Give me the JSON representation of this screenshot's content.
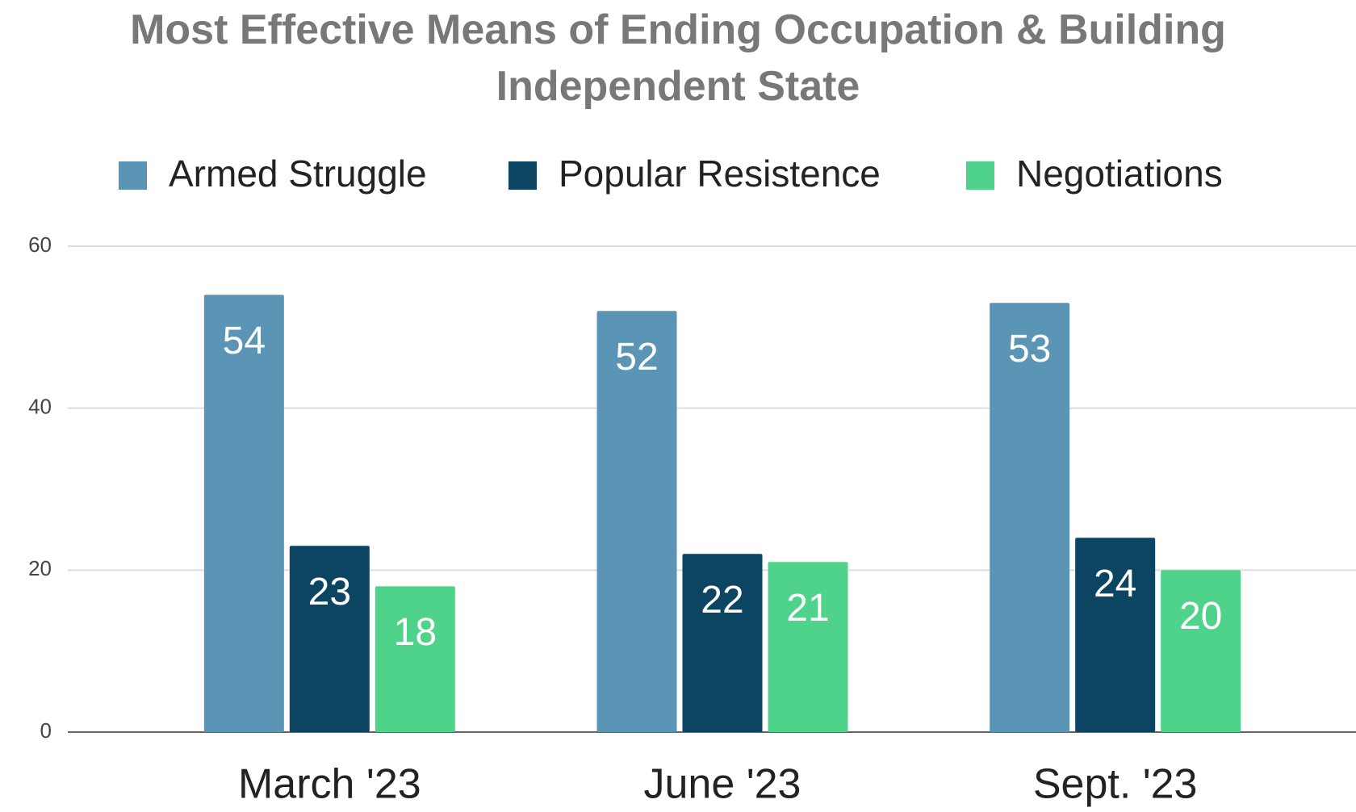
{
  "chart_data": {
    "type": "bar",
    "title": "Most Effective Means of Ending Occupation & Building Independent State",
    "categories": [
      "March '23",
      "June '23",
      "Sept. '23"
    ],
    "series": [
      {
        "name": "Armed Struggle",
        "color": "#5b95b6",
        "values": [
          54,
          52,
          53
        ]
      },
      {
        "name": "Popular Resistence",
        "color": "#0b4562",
        "values": [
          23,
          22,
          24
        ]
      },
      {
        "name": "Negotiations",
        "color": "#4fd38b",
        "values": [
          18,
          21,
          20
        ]
      }
    ],
    "ylim": [
      0,
      60
    ],
    "yticks": [
      0,
      20,
      40,
      60
    ],
    "grid": true,
    "legend": "top"
  }
}
